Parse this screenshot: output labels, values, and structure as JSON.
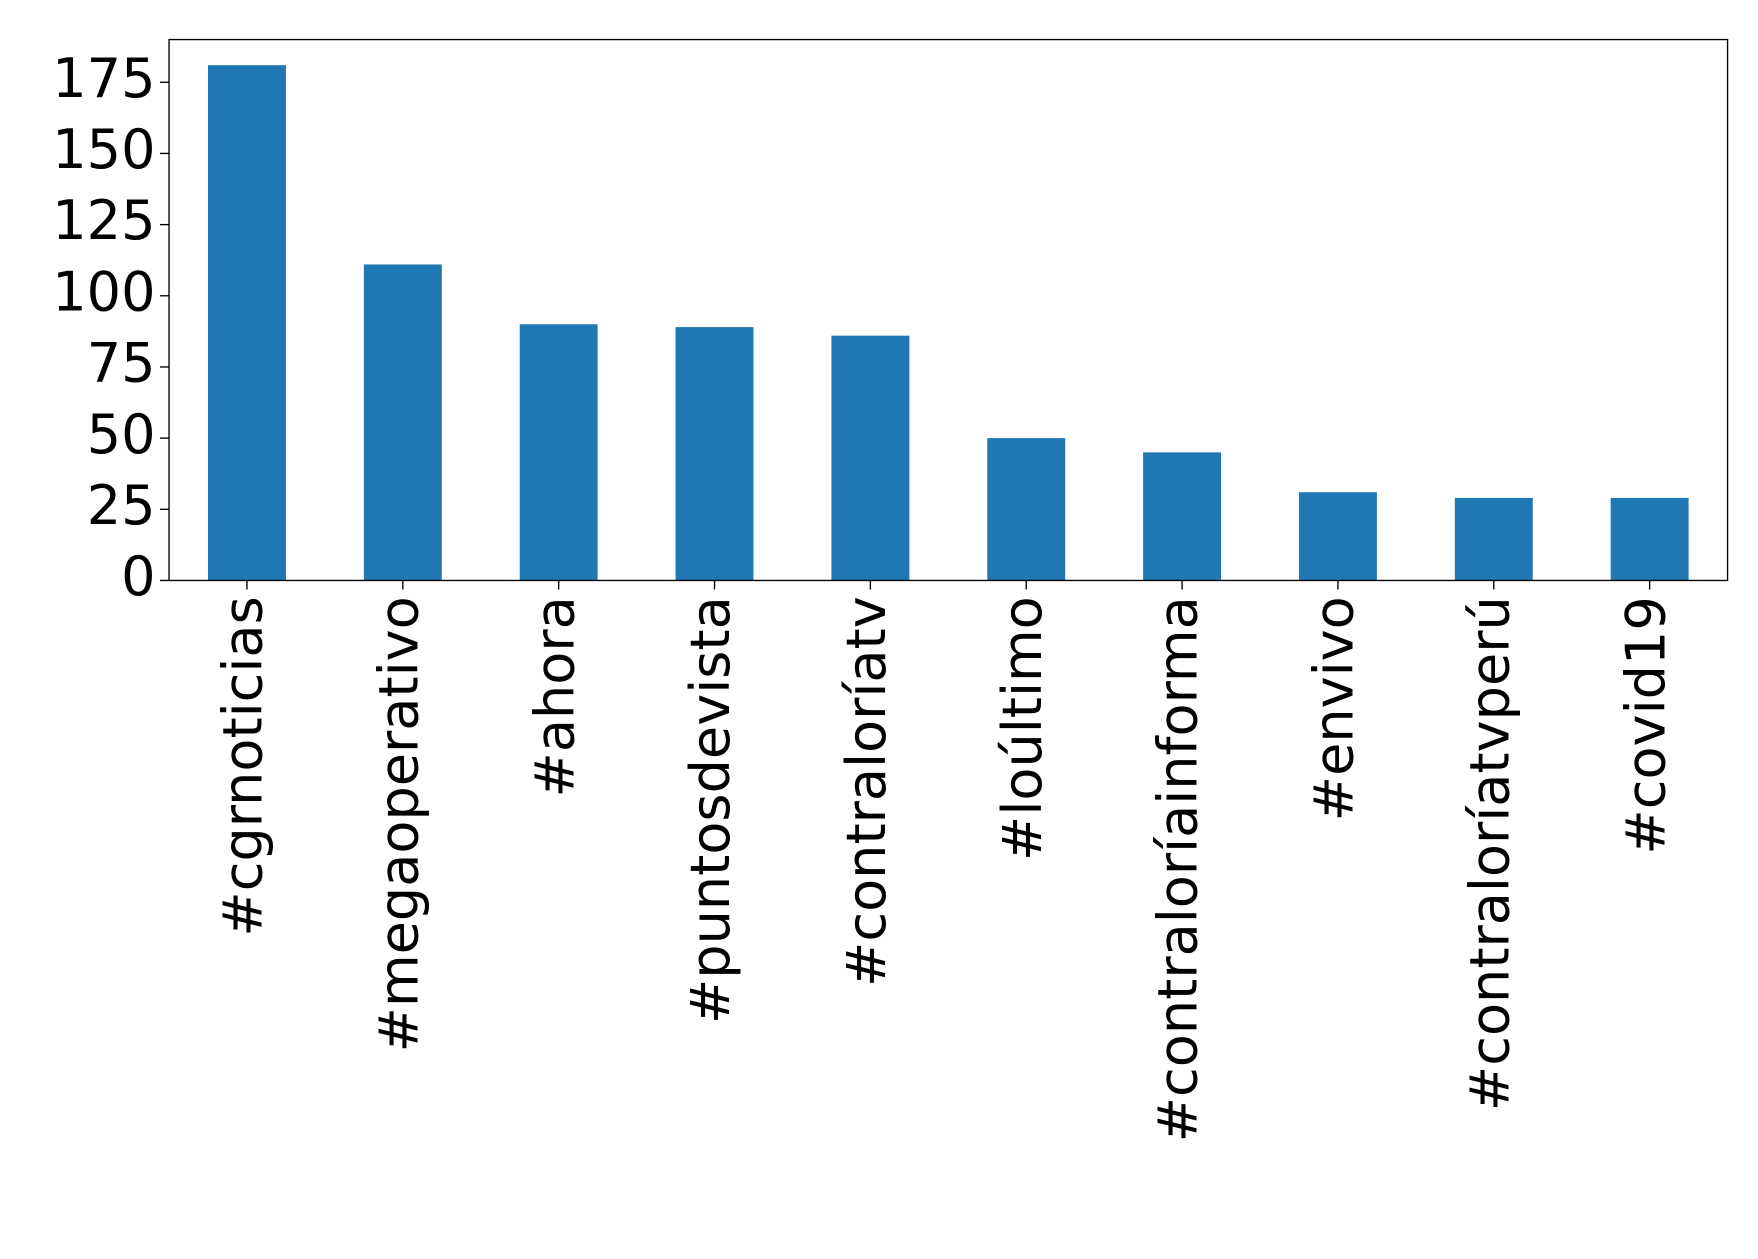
{
  "chart_data": {
    "type": "bar",
    "categories": [
      "#cgrnoticias",
      "#megaoperativo",
      "#ahora",
      "#puntosdevista",
      "#contraloríatv",
      "#loúltimo",
      "#contraloríainforma",
      "#envivo",
      "#contraloríatvperú",
      "#covid19"
    ],
    "values": [
      181,
      111,
      90,
      89,
      86,
      50,
      45,
      31,
      29,
      29
    ],
    "color": "#1f77b4",
    "ylim": [
      0,
      190
    ],
    "yticks": [
      0,
      25,
      50,
      75,
      100,
      125,
      150,
      175
    ]
  }
}
